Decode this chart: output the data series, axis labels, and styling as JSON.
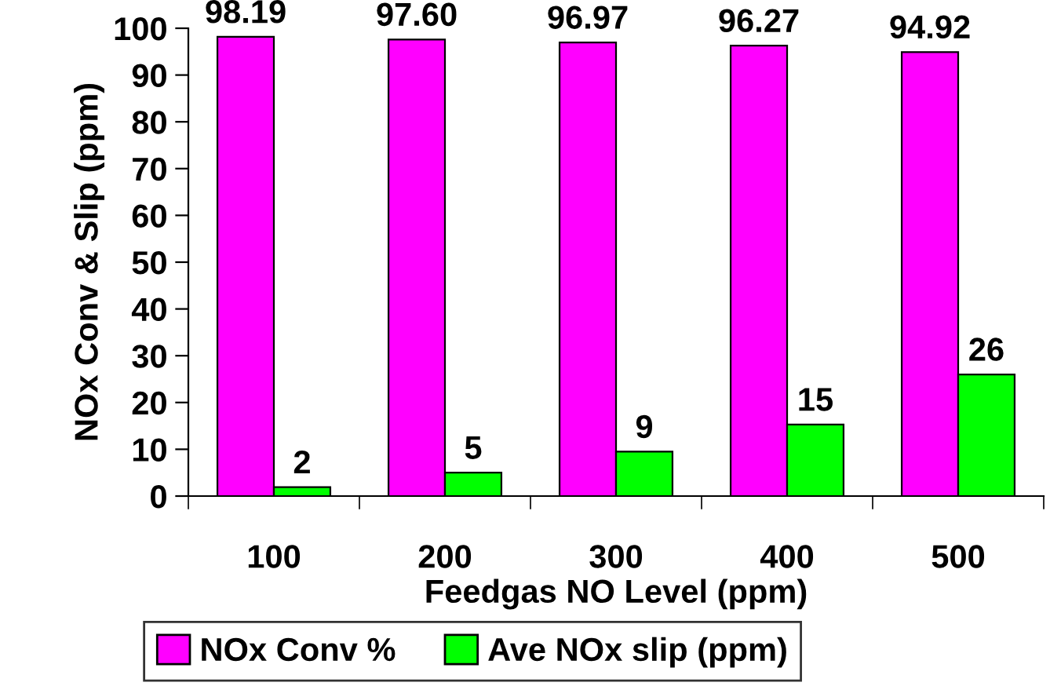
{
  "chart_data": {
    "type": "bar",
    "xlabel": "Feedgas NO Level (ppm)",
    "ylabel": "NOx Conv & Slip (ppm)",
    "categories": [
      "100",
      "200",
      "300",
      "400",
      "500"
    ],
    "series": [
      {
        "name": "NOx Conv %",
        "color": "#ff00ff",
        "values": [
          98.19,
          97.6,
          96.97,
          96.27,
          94.92
        ],
        "value_labels": [
          "98.19",
          "97.60",
          "96.97",
          "96.27",
          "94.92"
        ]
      },
      {
        "name": "Ave NOx slip (ppm)",
        "color": "#00ff00",
        "values": [
          1.9,
          5.0,
          9.5,
          15.3,
          26.0
        ],
        "value_labels": [
          "2",
          "5",
          "9",
          "15",
          "26"
        ]
      }
    ],
    "ylim": [
      0,
      100
    ],
    "yticks": [
      0,
      10,
      20,
      30,
      40,
      50,
      60,
      70,
      80,
      90,
      100
    ],
    "grid": false,
    "legend": "bottom"
  }
}
